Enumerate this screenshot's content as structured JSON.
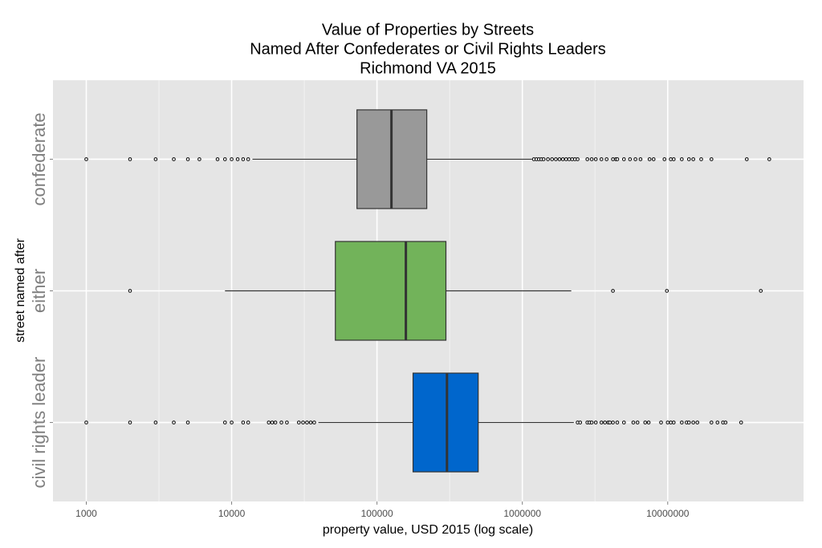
{
  "chart_data": {
    "type": "boxplot",
    "title": [
      "Value of Properties by Streets",
      "Named After Confederates or Civil Rights Leaders",
      "Richmond VA 2015"
    ],
    "x_label": "property value, USD 2015 (log scale)",
    "y_label": "street named after",
    "x_log_scale": true,
    "grid": true,
    "xlim": [
      590,
      86000000
    ],
    "xticks": [
      1000,
      10000,
      100000,
      1000000,
      10000000
    ],
    "categories": [
      "confederate",
      "either",
      "civil rights leader"
    ],
    "series": [
      {
        "name": "confederate",
        "color": "#999999",
        "whisker_low": 13900,
        "q1": 72800,
        "median": 125700,
        "q3": 220000,
        "whisker_high": 1165000,
        "outliers": [
          1000,
          2000,
          3000,
          4000,
          5000,
          6000,
          8000,
          9000,
          10000,
          11000,
          12000,
          13000,
          1200000,
          1250000,
          1300000,
          1350000,
          1400000,
          1500000,
          1600000,
          1700000,
          1800000,
          1900000,
          2000000,
          2100000,
          2200000,
          2300000,
          2400000,
          2800000,
          3000000,
          3200000,
          3500000,
          3800000,
          4200000,
          4400000,
          4500000,
          5000000,
          5500000,
          6000000,
          6500000,
          7500000,
          8000000,
          9500000,
          10500000,
          11000000,
          12500000,
          14000000,
          15000000,
          17000000,
          20000000,
          35000000,
          50000000
        ]
      },
      {
        "name": "either",
        "color": "#72b35a",
        "whisker_low": 9000,
        "q1": 51700,
        "median": 158000,
        "q3": 298000,
        "whisker_high": 2170000,
        "outliers": [
          2000,
          4200000,
          9870000,
          43700000
        ]
      },
      {
        "name": "civil rights leader",
        "color": "#0066cc",
        "whisker_low": 39500,
        "q1": 177000,
        "median": 303000,
        "q3": 497000,
        "whisker_high": 2260000,
        "outliers": [
          1000,
          2000,
          3000,
          4000,
          5000,
          9000,
          10000,
          12000,
          13000,
          18000,
          19000,
          20000,
          22000,
          24000,
          29000,
          31000,
          33000,
          35000,
          37000,
          2400000,
          2500000,
          2800000,
          2900000,
          3000000,
          3200000,
          3500000,
          3700000,
          3900000,
          4000000,
          4200000,
          4500000,
          5000000,
          5800000,
          6200000,
          7000000,
          7400000,
          9000000,
          10000000,
          10500000,
          11000000,
          12500000,
          13500000,
          14000000,
          15000000,
          16000000,
          20000000,
          22000000,
          24000000,
          25000000,
          32000000
        ]
      }
    ]
  }
}
